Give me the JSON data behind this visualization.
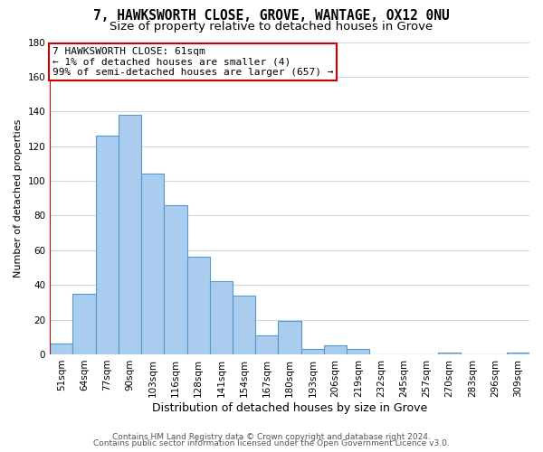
{
  "title": "7, HAWKSWORTH CLOSE, GROVE, WANTAGE, OX12 0NU",
  "subtitle": "Size of property relative to detached houses in Grove",
  "xlabel": "Distribution of detached houses by size in Grove",
  "ylabel": "Number of detached properties",
  "bar_labels": [
    "51sqm",
    "64sqm",
    "77sqm",
    "90sqm",
    "103sqm",
    "116sqm",
    "128sqm",
    "141sqm",
    "154sqm",
    "167sqm",
    "180sqm",
    "193sqm",
    "206sqm",
    "219sqm",
    "232sqm",
    "245sqm",
    "257sqm",
    "270sqm",
    "283sqm",
    "296sqm",
    "309sqm"
  ],
  "bar_values": [
    6,
    35,
    126,
    138,
    104,
    86,
    56,
    42,
    34,
    11,
    19,
    3,
    5,
    3,
    0,
    0,
    0,
    1,
    0,
    0,
    1
  ],
  "bar_color": "#aaccee",
  "bar_edge_color": "#5599cc",
  "annotation_line1": "7 HAWKSWORTH CLOSE: 61sqm",
  "annotation_line2": "← 1% of detached houses are smaller (4)",
  "annotation_line3": "99% of semi-detached houses are larger (657) →",
  "annotation_box_color": "#ffffff",
  "annotation_box_edge_color": "#cc0000",
  "marker_line_color": "#cc0000",
  "ylim": [
    0,
    180
  ],
  "yticks": [
    0,
    20,
    40,
    60,
    80,
    100,
    120,
    140,
    160,
    180
  ],
  "footer_line1": "Contains HM Land Registry data © Crown copyright and database right 2024.",
  "footer_line2": "Contains public sector information licensed under the Open Government Licence v3.0.",
  "bg_color": "#ffffff",
  "grid_color": "#c8daea",
  "title_fontsize": 10.5,
  "subtitle_fontsize": 9.5,
  "xlabel_fontsize": 9,
  "ylabel_fontsize": 8,
  "tick_fontsize": 7.5,
  "footer_fontsize": 6.5,
  "annotation_fontsize": 8
}
